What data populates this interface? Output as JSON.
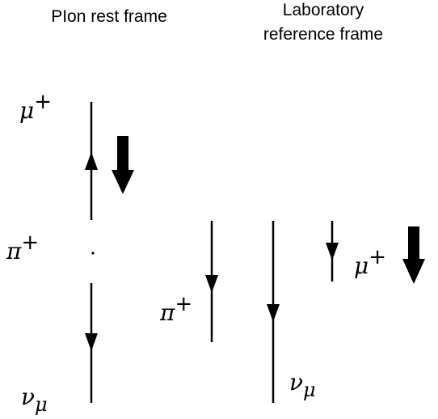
{
  "headings": {
    "pion_rest_frame": "PIon rest frame",
    "lab_frame_line1": "Laboratory",
    "lab_frame_line2": "reference frame"
  },
  "rest_frame": {
    "muon": {
      "symbol": "μ",
      "charge": "+"
    },
    "pion": {
      "symbol": "π",
      "charge": "+"
    },
    "neutrino": {
      "symbol": "ν",
      "flavor": "μ"
    }
  },
  "lab_frame": {
    "pion": {
      "symbol": "π",
      "charge": "+"
    },
    "neutrino": {
      "symbol": "ν",
      "flavor": "μ"
    },
    "muon": {
      "symbol": "μ",
      "charge": "+"
    }
  },
  "colors": {
    "line": "#000000",
    "spin_arrow": "#000000",
    "background": "#ffffff"
  }
}
